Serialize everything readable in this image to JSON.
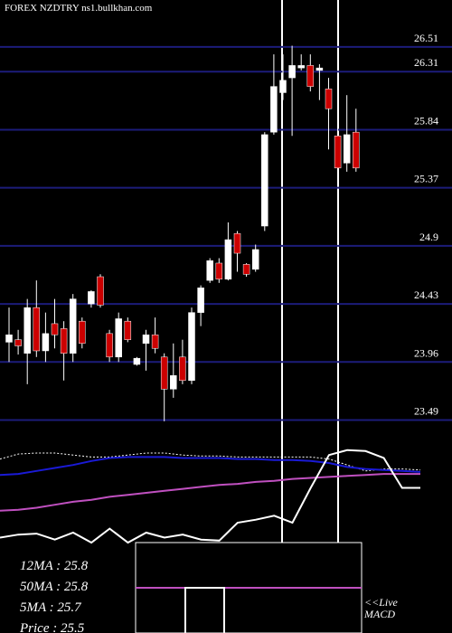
{
  "chart_data": [
    {
      "type": "candlestick",
      "title": "FOREX  NZDTRY ns1.bullkhan.com",
      "open": [
        24.12,
        24.14,
        24.03,
        24.4,
        24.05,
        24.27,
        24.23,
        24.03,
        24.29,
        24.43,
        24.65,
        24.19,
        24.0,
        24.29,
        23.94,
        24.11,
        24.18,
        24.0,
        23.74,
        24.0,
        23.81,
        24.36,
        24.62,
        24.76,
        24.63,
        25.0,
        24.75,
        24.71,
        25.06,
        25.82,
        26.14,
        26.26,
        26.34,
        26.36,
        26.32,
        26.17,
        25.79,
        25.57,
        25.82
      ],
      "high": [
        24.4,
        24.22,
        24.47,
        24.62,
        24.36,
        24.47,
        24.29,
        24.51,
        24.32,
        24.54,
        24.67,
        24.22,
        24.36,
        24.32,
        24.0,
        24.22,
        24.32,
        24.03,
        24.11,
        24.14,
        24.4,
        24.58,
        24.8,
        24.8,
        25.09,
        25.02,
        24.76,
        24.91,
        25.82,
        26.45,
        26.45,
        26.52,
        26.45,
        26.45,
        26.37,
        26.26,
        26.01,
        26.12,
        26.01
      ],
      "low": [
        23.96,
        24.02,
        23.78,
        24.0,
        23.96,
        24.07,
        23.81,
        23.96,
        24.07,
        24.4,
        24.4,
        23.96,
        23.96,
        24.12,
        23.93,
        23.89,
        24.03,
        23.48,
        23.67,
        23.78,
        23.78,
        24.25,
        24.6,
        24.6,
        24.62,
        24.69,
        24.65,
        24.69,
        25.02,
        25.8,
        26.08,
        25.79,
        26.32,
        26.15,
        26.08,
        25.68,
        25.5,
        25.5,
        25.5
      ],
      "close": [
        24.18,
        24.09,
        24.4,
        24.05,
        24.19,
        24.18,
        24.03,
        24.47,
        24.11,
        24.53,
        24.42,
        24.0,
        24.31,
        24.14,
        23.99,
        24.18,
        24.07,
        23.74,
        23.85,
        23.81,
        24.36,
        24.56,
        24.78,
        24.63,
        24.95,
        24.84,
        24.67,
        24.87,
        25.8,
        26.19,
        26.24,
        26.36,
        26.36,
        26.19,
        26.34,
        26.01,
        25.53,
        25.8,
        25.53
      ],
      "up_color": "#ffffff",
      "down_color": "#cc0000",
      "grid_color": "#1c1c7a",
      "ylim": [
        23.23,
        26.89
      ],
      "yticks": [
        26.51,
        26.31,
        25.84,
        25.37,
        24.9,
        24.43,
        23.96,
        23.49
      ],
      "grid": true,
      "annotations": [
        "12MA : 25.8",
        "50MA : 25.8",
        "5MA : 25.7",
        "Price   : 25.5"
      ]
    },
    {
      "type": "line",
      "x": [
        0,
        20,
        40,
        60,
        80,
        100,
        120,
        140,
        160,
        180,
        200,
        220,
        240,
        260,
        280,
        300,
        320,
        340,
        360,
        380,
        400,
        420,
        440,
        460
      ],
      "xlim": [
        0,
        460
      ],
      "ylim": [
        0,
        100
      ],
      "series": [
        {
          "color": "#ffffff",
          "dash": true,
          "values": [
            84,
            89,
            90,
            90,
            88,
            86,
            86,
            88,
            90,
            90,
            88,
            87,
            87,
            86,
            86,
            86,
            86,
            86,
            84,
            78,
            72,
            74,
            74,
            73
          ]
        },
        {
          "color": "#1a1ad6",
          "values": [
            68,
            69,
            72,
            75,
            78,
            82,
            85,
            86,
            86,
            86,
            85,
            85,
            85,
            84,
            84,
            83,
            83,
            82,
            80,
            76,
            74,
            73,
            72,
            71
          ]
        },
        {
          "color": "#c050c0",
          "values": [
            32,
            33,
            35,
            38,
            41,
            43,
            46,
            48,
            50,
            52,
            54,
            56,
            58,
            59,
            61,
            62,
            64,
            65,
            66,
            67,
            68,
            69,
            69,
            69
          ]
        },
        {
          "color": "#ffffff",
          "values": [
            5,
            8,
            9,
            3,
            10,
            0,
            14,
            0,
            10,
            5,
            8,
            3,
            2,
            20,
            23,
            27,
            20,
            55,
            88,
            93,
            92,
            85,
            55,
            55
          ]
        }
      ]
    },
    {
      "type": "macd",
      "x": [
        150,
        400
      ],
      "xlim": [
        150,
        400
      ],
      "ylim": [
        0,
        100
      ],
      "signal": [
        50,
        50
      ],
      "signal_color": "#c050c0",
      "bins": [
        205,
        248
      ],
      "counts": [
        50
      ],
      "bar_color": "#ffffff",
      "annotations": [
        "<<Live",
        "MACD"
      ]
    }
  ]
}
